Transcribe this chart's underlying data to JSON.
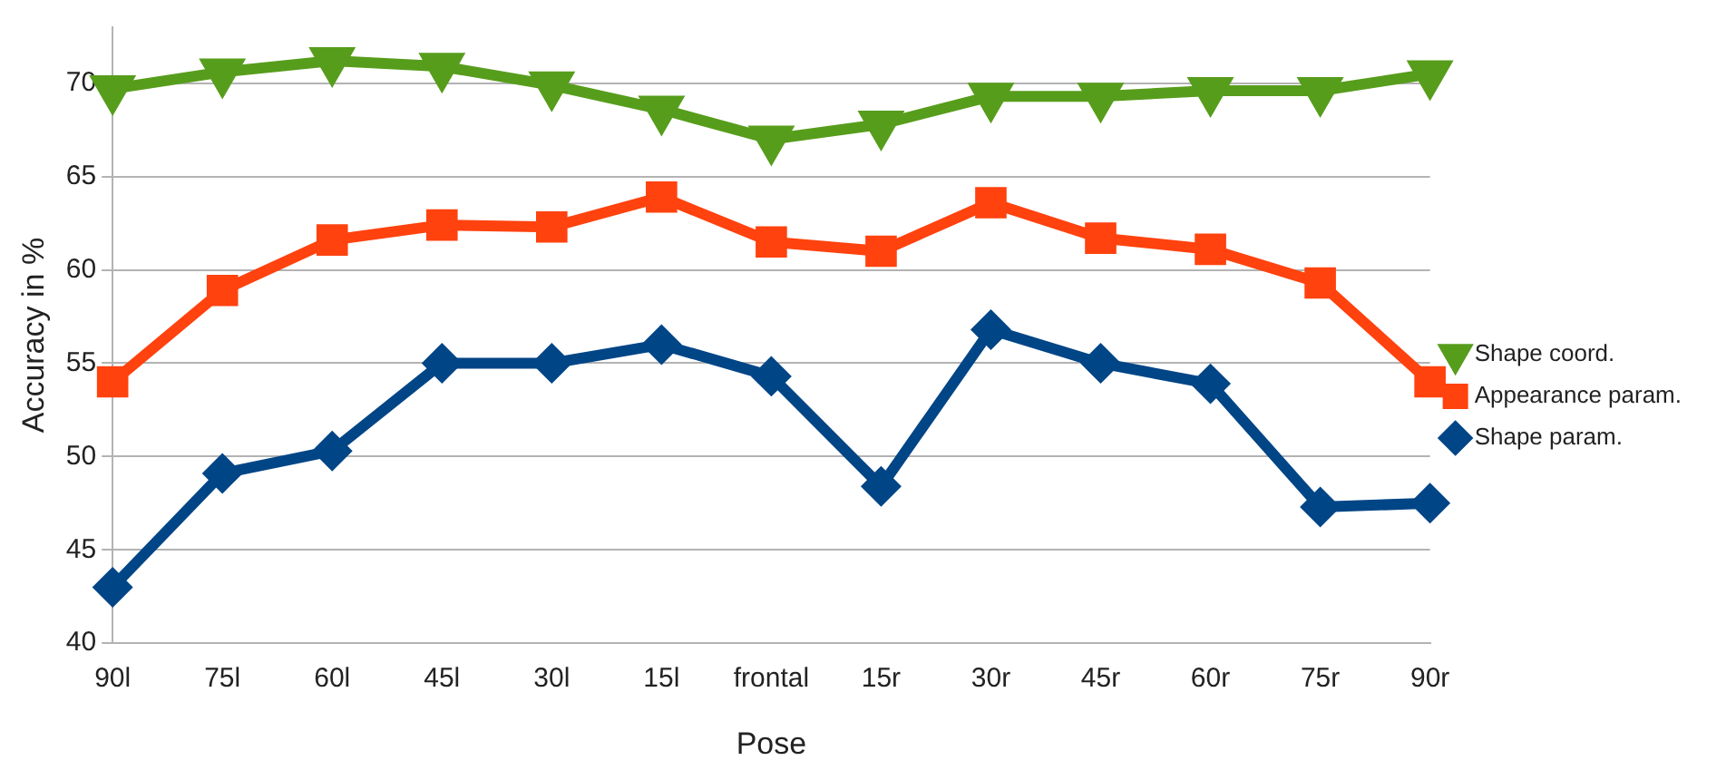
{
  "chart_data": {
    "type": "line",
    "xlabel": "Pose",
    "ylabel": "Accuracy in %",
    "categories": [
      "90l",
      "75l",
      "60l",
      "45l",
      "30l",
      "15l",
      "frontal",
      "15r",
      "30r",
      "45r",
      "60r",
      "75r",
      "90r"
    ],
    "ylim": [
      40,
      73
    ],
    "yticks": [
      40,
      45,
      50,
      55,
      60,
      65,
      70
    ],
    "grid": "y",
    "legend": "right",
    "line_style": "solid",
    "series": [
      {
        "name": "Shape coord.",
        "color": "#579d1c",
        "marker": "triangle",
        "values": [
          69.7,
          70.6,
          71.2,
          70.9,
          69.9,
          68.6,
          67.0,
          67.8,
          69.3,
          69.3,
          69.6,
          69.6,
          70.5
        ]
      },
      {
        "name": "Appearance param.",
        "color": "#ff420e",
        "marker": "square",
        "values": [
          54,
          58.9,
          61.6,
          62.4,
          62.3,
          63.9,
          61.5,
          61.0,
          63.6,
          61.7,
          61.1,
          59.3,
          54
        ]
      },
      {
        "name": "Shape param.",
        "color": "#004586",
        "marker": "diamond",
        "values": [
          43,
          49.1,
          50.3,
          55.0,
          55.0,
          56.0,
          54.3,
          48.4,
          56.8,
          55.0,
          53.9,
          47.3,
          47.5
        ]
      }
    ]
  }
}
